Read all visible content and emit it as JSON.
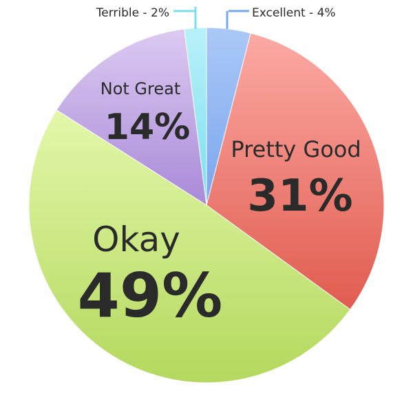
{
  "chart_data": {
    "type": "pie",
    "title": "",
    "slices": [
      {
        "label": "Excellent",
        "value": 4,
        "display": "Excellent - 4%",
        "color_light": "#abc8f7",
        "color_dark": "#7aa6ee",
        "label_mode": "callout"
      },
      {
        "label": "Pretty Good",
        "value": 31,
        "display": "31%",
        "color_light": "#fcaaa4",
        "color_dark": "#e05c4f",
        "label_mode": "inside"
      },
      {
        "label": "Okay",
        "value": 49,
        "display": "49%",
        "color_light": "#e3f8aa",
        "color_dark": "#b4d85e",
        "label_mode": "inside"
      },
      {
        "label": "Not Great",
        "value": 14,
        "display": "14%",
        "color_light": "#dccaf2",
        "color_dark": "#a98ad8",
        "label_mode": "inside"
      },
      {
        "label": "Terrible",
        "value": 2,
        "display": "Terrible - 2%",
        "color_light": "#b9f1fa",
        "color_dark": "#79dff0",
        "label_mode": "callout"
      }
    ]
  }
}
